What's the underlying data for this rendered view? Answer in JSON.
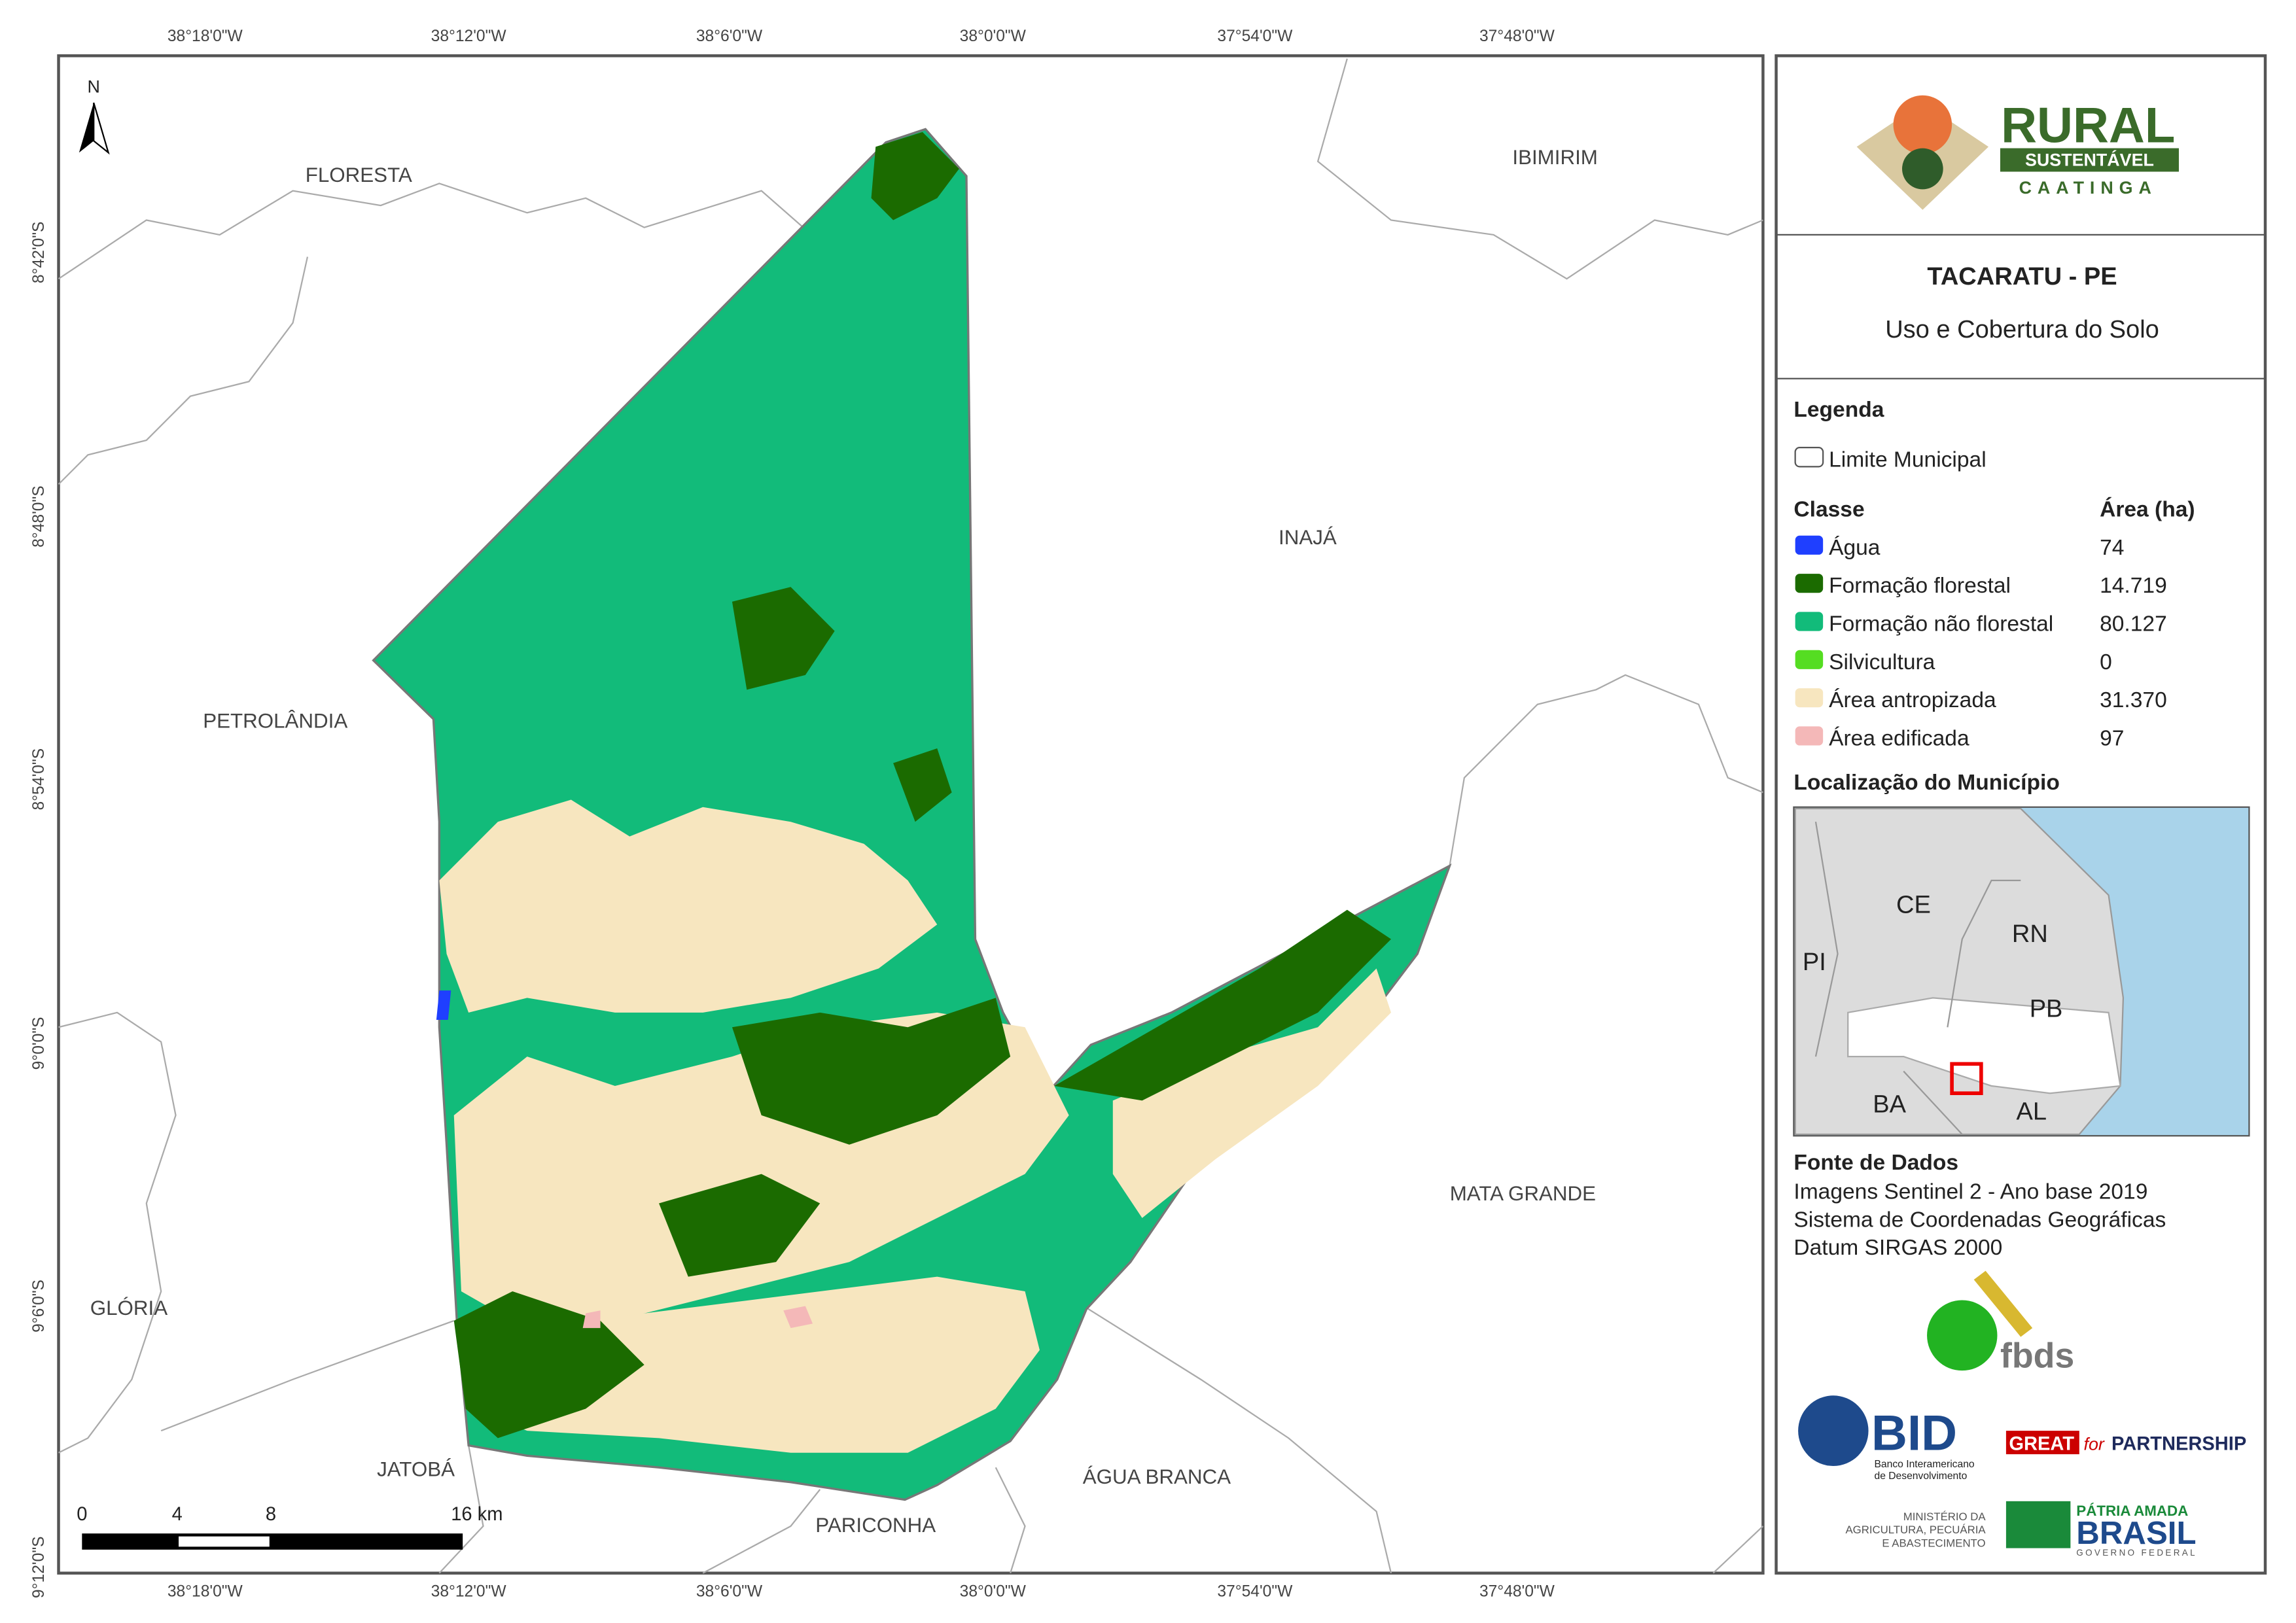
{
  "map": {
    "lon_ticks": [
      "38°18'0\"W",
      "38°12'0\"W",
      "38°6'0\"W",
      "38°0'0\"W",
      "37°54'0\"W",
      "37°48'0\"W"
    ],
    "lat_ticks": [
      "8°42'0\"S",
      "8°48'0\"S",
      "8°54'0\"S",
      "9°0'0\"S",
      "9°6'0\"S",
      "9°12'0\"S"
    ],
    "places": [
      "FLORESTA",
      "IBIMIRIM",
      "INAJÁ",
      "PETROLÂNDIA",
      "MATA GRANDE",
      "GLÓRIA",
      "JATOBÁ",
      "ÁGUA BRANCA",
      "PARICONHA"
    ],
    "north": "N",
    "scale_bar": [
      "0",
      "4",
      "8",
      "16 km"
    ]
  },
  "panel": {
    "logo": {
      "title": "RURAL",
      "subtitle": "SUSTENTÁVEL",
      "tag": "CAATINGA"
    },
    "title": "TACARATU - PE",
    "subtitle": "Uso e Cobertura do Solo",
    "legend": {
      "heading": "Legenda",
      "boundary": "Limite Municipal",
      "class_header": "Classe",
      "area_header": "Área (ha)",
      "classes": [
        {
          "name": "Água",
          "area": "74",
          "color": "#1f3fff"
        },
        {
          "name": "Formação florestal",
          "area": "14.719",
          "color": "#1b6b00"
        },
        {
          "name": "Formação não florestal",
          "area": "80.127",
          "color": "#12bb7a"
        },
        {
          "name": "Silvicultura",
          "area": "0",
          "color": "#55dd22"
        },
        {
          "name": "Área antropizada",
          "area": "31.370",
          "color": "#f7e6bf"
        },
        {
          "name": "Área edificada",
          "area": "97",
          "color": "#f4b8b8"
        }
      ]
    },
    "location": {
      "heading": "Localização do Município",
      "states": [
        "CE",
        "RN",
        "PI",
        "PB",
        "BA",
        "AL"
      ]
    },
    "sources": {
      "heading": "Fonte de Dados",
      "lines": [
        "Imagens Sentinel 2 - Ano base 2019",
        "Sistema de Coordenadas Geográficas",
        "Datum SIRGAS 2000"
      ]
    },
    "logos": {
      "fbds": "fbds",
      "bid": "BID",
      "bid_name": [
        "Banco Interamericano",
        "de Desenvolvimento"
      ],
      "great": "GREAT",
      "great_for": "for",
      "great_partner": "PARTNERSHIP",
      "ministry": [
        "MINISTÉRIO DA",
        "AGRICULTURA, PECUÁRIA",
        "E ABASTECIMENTO"
      ],
      "patria": "PÁTRIA AMADA",
      "brasil": "BRASIL",
      "governo": "GOVERNO FEDERAL"
    }
  }
}
